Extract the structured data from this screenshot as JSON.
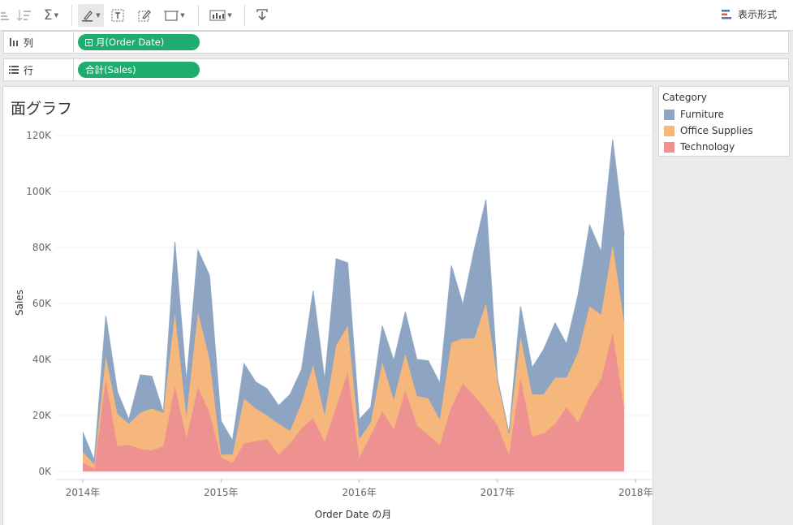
{
  "toolbar": {
    "show_me_label": "表示形式"
  },
  "shelves": {
    "columns": {
      "label": "列",
      "pill": "月(Order Date)"
    },
    "rows": {
      "label": "行",
      "pill": "合計(Sales)"
    }
  },
  "view": {
    "title": "面グラフ"
  },
  "legend": {
    "title": "Category",
    "items": [
      {
        "name": "Furniture",
        "color": "#8da5c3"
      },
      {
        "name": "Office Supplies",
        "color": "#f5b77b"
      },
      {
        "name": "Technology",
        "color": "#ee9291"
      }
    ]
  },
  "chart_data": {
    "type": "area",
    "stacked": true,
    "xlabel": "Order Date の月",
    "ylabel": "Sales",
    "x_start": "2014-01",
    "x_end": "2017-12",
    "x_tick_labels": [
      "2014年",
      "2015年",
      "2016年",
      "2017年",
      "2018年"
    ],
    "y_tick_labels": [
      "0K",
      "20K",
      "40K",
      "60K",
      "80K",
      "100K",
      "120K"
    ],
    "ylim": [
      0,
      120000
    ],
    "grid": true,
    "series": [
      {
        "name": "Technology",
        "color": "#ee9291",
        "values": [
          3000,
          1000,
          33000,
          9000,
          9500,
          8000,
          7500,
          9000,
          30500,
          12000,
          30000,
          21000,
          5000,
          3000,
          10000,
          10800,
          11500,
          6000,
          10000,
          15500,
          19000,
          10500,
          23000,
          35500,
          5000,
          12800,
          21500,
          15000,
          29000,
          16500,
          13000,
          9500,
          23000,
          31500,
          27000,
          22000,
          16500,
          6000,
          33500,
          12500,
          13500,
          17000,
          23000,
          17500,
          26500,
          33000,
          49500,
          22500
        ]
      },
      {
        "name": "Office Supplies",
        "color": "#f5b77b",
        "values": [
          4000,
          1500,
          8000,
          11500,
          7500,
          13000,
          15000,
          12000,
          26000,
          7500,
          27000,
          19000,
          1000,
          3000,
          16000,
          11700,
          8500,
          11000,
          4500,
          9000,
          19000,
          9500,
          22000,
          16500,
          6500,
          4700,
          17500,
          10500,
          13000,
          10500,
          13000,
          9000,
          23000,
          16000,
          20500,
          38000,
          16500,
          7500,
          14500,
          15000,
          14000,
          16500,
          10500,
          25000,
          32500,
          23000,
          31500,
          30500
        ]
      },
      {
        "name": "Furniture",
        "color": "#8da5c3",
        "values": [
          7000,
          1500,
          14500,
          8000,
          1500,
          13500,
          11500,
          0,
          25500,
          12500,
          22000,
          30000,
          12000,
          5000,
          12500,
          9500,
          9500,
          6500,
          13000,
          12000,
          26500,
          12500,
          31000,
          22500,
          7000,
          5500,
          13000,
          14000,
          15000,
          13000,
          13500,
          13000,
          27500,
          12000,
          32000,
          37000,
          0,
          0,
          11000,
          9500,
          16000,
          19500,
          12000,
          20500,
          29000,
          22500,
          37500,
          31500
        ]
      }
    ]
  }
}
